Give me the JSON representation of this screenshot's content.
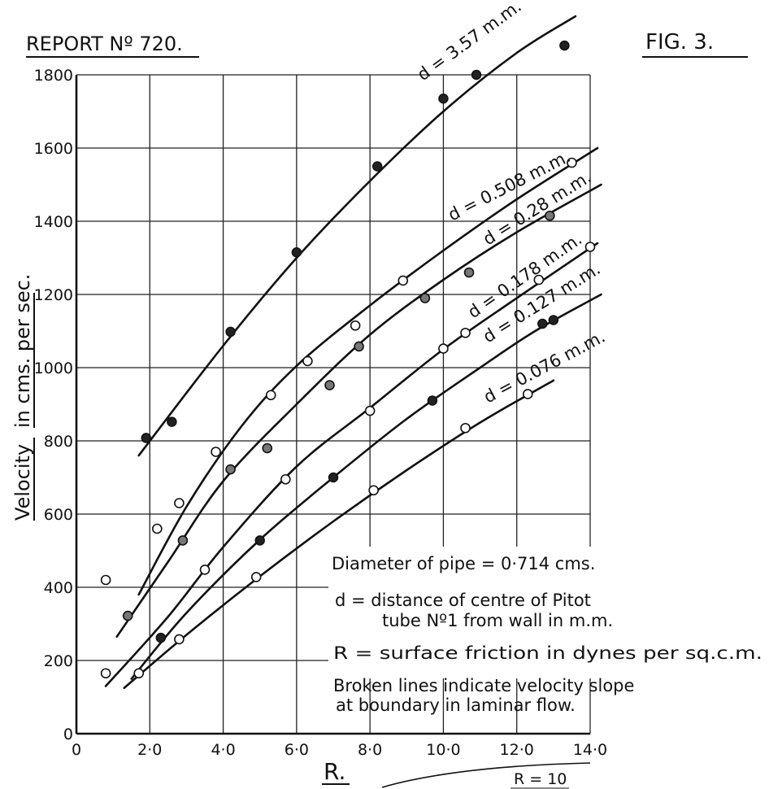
{
  "header": {
    "report": "REPORT Nº 720.",
    "figure": "FIG. 3."
  },
  "chart_data": {
    "type": "scatter",
    "xlabel": "R.",
    "ylabel_underlined": "Velocity",
    "ylabel_rest": "in cms. per sec.",
    "xlim": [
      0,
      14
    ],
    "ylim": [
      0,
      1800
    ],
    "x_ticks": [
      0,
      2,
      4,
      6,
      8,
      10,
      12,
      14
    ],
    "x_tick_labels": [
      "0",
      "2·0",
      "4·0",
      "6·0",
      "8·0",
      "10·0",
      "12·0",
      "14·0"
    ],
    "y_ticks": [
      0,
      200,
      400,
      600,
      800,
      1000,
      1200,
      1400,
      1600,
      1800
    ],
    "y_tick_labels": [
      "0",
      "200",
      "400",
      "600",
      "800",
      "1000",
      "1200",
      "1400",
      "1600",
      "1800"
    ],
    "grid": true,
    "series": [
      {
        "name": "d = 3.57 m.m.",
        "marker": "filled",
        "points": [
          [
            1.9,
            808
          ],
          [
            2.6,
            852
          ],
          [
            4.2,
            1098
          ],
          [
            6.0,
            1315
          ],
          [
            8.2,
            1550
          ],
          [
            10.0,
            1735
          ],
          [
            10.9,
            1800
          ],
          [
            13.3,
            1880
          ]
        ],
        "curve": [
          [
            1.7,
            760
          ],
          [
            4.0,
            1060
          ],
          [
            6.0,
            1300
          ],
          [
            8.0,
            1510
          ],
          [
            10.0,
            1700
          ],
          [
            12.0,
            1860
          ],
          [
            13.6,
            1960
          ]
        ]
      },
      {
        "name": "d = 0.508 m.m.",
        "marker": "open",
        "points": [
          [
            0.8,
            420
          ],
          [
            2.2,
            560
          ],
          [
            2.8,
            630
          ],
          [
            3.8,
            770
          ],
          [
            5.3,
            925
          ],
          [
            6.3,
            1018
          ],
          [
            7.6,
            1115
          ],
          [
            8.9,
            1238
          ],
          [
            13.5,
            1560
          ]
        ],
        "curve": [
          [
            1.7,
            380
          ],
          [
            3.0,
            620
          ],
          [
            4.5,
            840
          ],
          [
            6.0,
            1005
          ],
          [
            8.0,
            1170
          ],
          [
            10.0,
            1320
          ],
          [
            12.0,
            1460
          ],
          [
            14.2,
            1600
          ]
        ]
      },
      {
        "name": "d = 0.28 m.m.",
        "marker": "half",
        "points": [
          [
            1.4,
            322
          ],
          [
            2.9,
            528
          ],
          [
            4.2,
            722
          ],
          [
            5.2,
            780
          ],
          [
            6.9,
            952
          ],
          [
            7.7,
            1058
          ],
          [
            9.5,
            1190
          ],
          [
            10.7,
            1260
          ],
          [
            12.9,
            1415
          ]
        ],
        "curve": [
          [
            1.1,
            265
          ],
          [
            2.5,
            470
          ],
          [
            4.0,
            690
          ],
          [
            6.0,
            900
          ],
          [
            8.0,
            1090
          ],
          [
            10.0,
            1240
          ],
          [
            12.0,
            1370
          ],
          [
            14.3,
            1500
          ]
        ]
      },
      {
        "name": "d = 0.178 m.m.",
        "marker": "open",
        "points": [
          [
            0.8,
            165
          ],
          [
            3.5,
            448
          ],
          [
            5.7,
            695
          ],
          [
            8.0,
            882
          ],
          [
            10.0,
            1052
          ],
          [
            10.6,
            1095
          ],
          [
            12.6,
            1240
          ],
          [
            14.0,
            1330
          ]
        ],
        "curve": [
          [
            0.8,
            130
          ],
          [
            2.5,
            320
          ],
          [
            4.0,
            510
          ],
          [
            6.0,
            730
          ],
          [
            8.0,
            890
          ],
          [
            10.0,
            1050
          ],
          [
            12.0,
            1190
          ],
          [
            14.2,
            1340
          ]
        ]
      },
      {
        "name": "d = 0.127 m.m.",
        "marker": "filled",
        "points": [
          [
            2.3,
            262
          ],
          [
            5.0,
            528
          ],
          [
            7.0,
            700
          ],
          [
            9.7,
            910
          ],
          [
            12.7,
            1120
          ],
          [
            13.0,
            1130
          ]
        ],
        "curve": [
          [
            1.5,
            150
          ],
          [
            3.0,
            330
          ],
          [
            5.0,
            530
          ],
          [
            7.0,
            700
          ],
          [
            9.0,
            860
          ],
          [
            11.0,
            1000
          ],
          [
            12.5,
            1100
          ],
          [
            14.3,
            1200
          ]
        ]
      },
      {
        "name": "d = 0.076 m.m.",
        "marker": "open",
        "points": [
          [
            1.7,
            165
          ],
          [
            2.8,
            258
          ],
          [
            4.9,
            428
          ],
          [
            8.1,
            665
          ],
          [
            10.6,
            835
          ],
          [
            12.3,
            928
          ]
        ],
        "curve": [
          [
            1.3,
            125
          ],
          [
            3.0,
            270
          ],
          [
            5.0,
            430
          ],
          [
            7.0,
            580
          ],
          [
            9.0,
            720
          ],
          [
            11.0,
            850
          ],
          [
            13.0,
            965
          ]
        ]
      }
    ]
  },
  "labels": {
    "d_357": "d = 3.57 m.m.",
    "d_508": "d = 0.508 m.m.",
    "d_28": "d = 0.28 m.m.",
    "d_178": "d = 0.178 m.m.",
    "d_127": "d = 0.127 m.m.",
    "d_076": "d = 0.076 m.m."
  },
  "legend_notes": {
    "pipe": "Diameter of pipe = 0·714 cms.",
    "d_line1": "d = distance of centre of Pitot",
    "d_line2": "tube Nº1 from wall in m.m.",
    "r_line": "R = surface friction in dynes per sq.c.m.",
    "broken1": "Broken lines indicate velocity slope",
    "broken2": "at boundary in laminar flow."
  },
  "footer": {
    "r_eq": "R = 10"
  }
}
